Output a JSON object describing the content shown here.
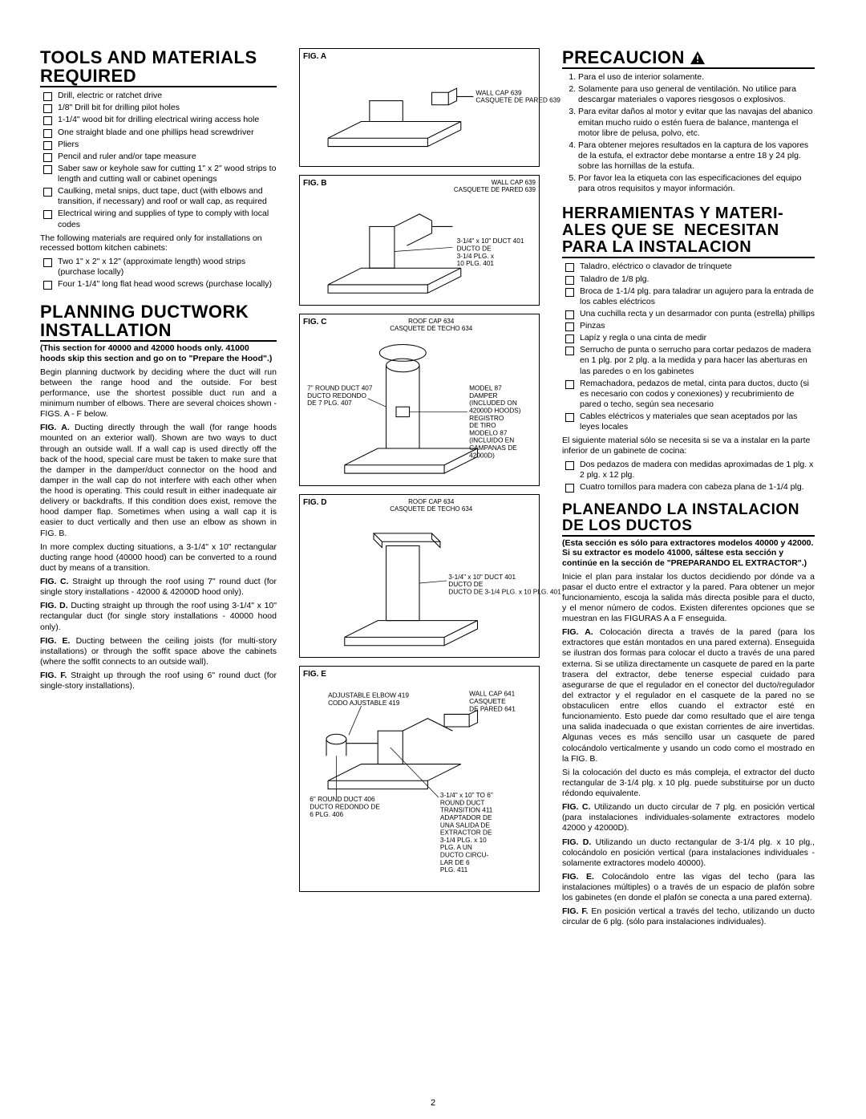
{
  "pageNumber": "2",
  "left": {
    "toolsTitle": "TOOLS AND MATERIALS REQUIRED",
    "toolsItems": [
      "Drill, electric or ratchet drive",
      "1/8\" Drill bit for drilling pilot holes",
      "1-1/4\" wood bit for drilling electrical wiring access hole",
      "One straight blade and one phillips head screwdriver",
      "Pliers",
      "Pencil and ruler and/or tape measure",
      "Saber saw or keyhole saw for cutting 1\" x 2\" wood strips to length and cutting wall or cabinet openings",
      "Caulking, metal snips, duct tape, duct (with elbows and transition, if necessary) and roof or wall cap, as required",
      "Electrical wiring and supplies of type to comply with local codes"
    ],
    "toolsNote": "The following materials are required only for installations on recessed bottom kitchen cabinets:",
    "toolsExtras": [
      "Two 1\" x 2\" x 12\" (approximate length) wood strips (purchase locally)",
      "Four 1-1/4\" long flat head wood screws (purchase locally)"
    ],
    "planTitle": "PLANNING DUCTWORK INSTALLATION",
    "planNote": "(This section for 40000 and 42000 hoods only. 41000 hoods skip this section and go on to \"Prepare the Hood\".)",
    "planParas": [
      "Begin planning ductwork by deciding where the duct will run between the range hood and the outside. For best performance, use the shortest possible duct run and a minimum number of elbows. There are several choices shown - FIGS. A - F below.",
      "FIG. A. Ducting directly through the wall (for range hoods mounted on an exterior wall). Shown are two ways to duct through an outside wall. If a wall cap is used directly off the back of the hood, special care must be taken to make sure that the damper in the damper/duct connector on the hood and damper in the wall cap do not interfere with each other when the hood is operating. This could result in either inadequate air delivery or backdrafts. If this condition does exist, remove the hood damper flap. Sometimes when using a wall cap it is easier to duct vertically and then use an elbow as shown in FIG. B.",
      "In more complex ducting situations, a 3-1/4\" x 10\" rectangular ducting range hood (40000 hood) can be converted to a round duct by means of a transition.",
      "FIG. C. Straight up through the roof using 7\" round duct (for single story installations - 42000 & 42000D hood only).",
      "FIG. D. Ducting straight up through the roof using 3-1/4\" x 10\" rectangular duct (for single story installations - 40000 hood only).",
      "FIG. E. Ducting between the ceiling joists (for multi-story installations) or through the soffit space above the cabinets (where the soffit connects to an outside wall).",
      "FIG. F. Straight up through the roof using 6\" round duct (for single-story installations)."
    ]
  },
  "mid": {
    "figA": {
      "label": "FIG. A",
      "cap1": "WALL CAP 639",
      "cap2": "CASQUETE DE PARED 639"
    },
    "figB": {
      "label": "FIG. B",
      "cap1": "WALL CAP 639",
      "cap2": "CASQUETE DE PARED 639",
      "duct1": "3-1/4\" x 10\" DUCT 401",
      "duct2": "DUCTO DE 3-1/4 PLG. x 10 PLG. 401"
    },
    "figC": {
      "label": "FIG. C",
      "cap1": "ROOF CAP 634",
      "cap2": "CASQUETE DE TECHO 634",
      "duct1": "7\" ROUND DUCT 407",
      "duct2": "DUCTO REDONDO DE 7 PLG. 407",
      "model1": "MODEL 87 DAMPER (INCLUDED ON 42000D HOODS)",
      "model2": "REGISTRO DE TIRO MODELO 87 (INCLUIDO EN CAMPANAS DE 42000D)"
    },
    "figD": {
      "label": "FIG. D",
      "cap1": "ROOF CAP 634",
      "cap2": "CASQUETE DE TECHO 634",
      "duct1": "3-1/4\" x 10\" DUCT 401",
      "duct2": "DUCTO DE 3-1/4 PLG. x 10 PLG. 401"
    },
    "figE": {
      "label": "FIG. E",
      "elbow1": "ADJUSTABLE ELBOW 419",
      "elbow2": "CODO AJUSTABLE 419",
      "wall1": "WALL CAP 641",
      "wall2": "CASQUETE DE PARED 641",
      "round1": "6\" ROUND DUCT 406",
      "round2": "DUCTO REDONDO DE 6 PLG. 406",
      "trans1": "3-1/4\" x 10\" TO 6\" ROUND DUCT TRANSITION 411",
      "trans2": "ADAPTADOR DE UNA SALIDA DE EXTRACTOR DE 3-1/4 PLG. x 10 PLG. A UN DUCTO CIRCULAR DE 6 PLG. 411"
    }
  },
  "right": {
    "precTitle": "PRECAUCION",
    "precItems": [
      "Para el uso de interior solamente.",
      "Solamente para uso general de ventilación. No utilice para descargar materiales o vapores riesgosos o explosivos.",
      "Para evitar daños al motor y evitar que las navajas del abanico emitan mucho ruido o estén fuera de balance, mantenga el motor libre de pelusa, polvo, etc.",
      "Para obtener mejores resultados en la captura de los vapores de la estufa, el extractor debe montarse a entre 18 y 24 plg. sobre las hornillas de la estufa.",
      "Por favor lea la etiqueta con las especificaciones del equipo para otros requisitos y mayor información."
    ],
    "herrTitle": "HERRAMIENTAS Y MATERI-ALES QUE SE NECESITAN PARA LA INSTALACION",
    "herrItems": [
      "Taladro, eléctrico o clavador de trínquete",
      "Taladro de 1/8 plg.",
      "Broca de 1-1/4 plg. para taladrar un agujero para la entrada de los cables eléctricos",
      "Una cuchilla recta y un desarmador con punta (estrella) phillips",
      "Pinzas",
      "Lapíz y regla o una cinta de medir",
      "Serrucho de punta o serrucho para cortar pedazos de madera en 1 plg. por 2 plg. a la medida y para hacer las aberturas en las paredes o en los gabinetes",
      "Remachadora, pedazos de metal, cinta para ductos, ducto (si es necesario con codos y conexiones) y recubrimiento de pared o techo, según sea necesario",
      "Cables eléctricos y materiales que sean aceptados por las leyes locales"
    ],
    "herrNote": "El siguiente material sólo se necesita si se va a instalar en la parte inferior de un gabinete de cocina:",
    "herrExtras": [
      "Dos pedazos de madera con medidas aproximadas de 1 plg. x 2 plg. x 12 plg.",
      "Cuatro tornillos para madera con cabeza plana de 1-1/4 plg."
    ],
    "planTitle": "PLANEANDO LA INSTALACION DE LOS DUCTOS",
    "planNote": "(Esta sección es sólo para extractores modelos 40000 y 42000. Si su extractor es modelo 41000, sáltese esta sección y continúe en la sección de \"PREPARANDO EL EXTRACTOR\".)",
    "planParas": [
      "Inicie el plan para instalar los ductos decidiendo por dónde va a pasar el ducto entre el extractor y la pared. Para obtener un mejor funcionamiento, escoja la salida más directa posible para el ducto, y el menor número de codos. Existen diferentes opciones que se muestran en las FIGURAS A a F enseguida.",
      "FIG. A. Colocación directa a través de la pared (para los extractores que están montados en una pared externa). Enseguida se ilustran dos formas para colocar el ducto a través de una pared externa. Si se utiliza directamente un casquete de pared en la parte trasera del extractor, debe tenerse especial cuidado para asegurarse de que el regulador en el conector del ducto/regulador del extractor y el regulador en el casquete de la pared no se obstaculicen entre ellos cuando el extractor esté en funcionamiento. Esto puede dar como resultado que el aire tenga una salida inadecuada o que existan corrientes de aire invertidas. Algunas veces es más sencillo usar un casquete de pared colocándolo verticalmente y usando un codo como el mostrado en la FIG. B.",
      "Si la colocación del ducto es más compleja, el extractor del ducto rectangular de 3-1/4 plg. x 10 plg. puede substituirse por un ducto rédondo equivalente.",
      "FIG. C. Utilizando un ducto circular de 7 plg. en posición vertical (para instalaciones individuales-solamente extractores modelo 42000 y 42000D).",
      "FIG. D. Utilizando un ducto rectangular de 3-1/4 plg. x 10 plg., colocándolo en posición vertical (para instalaciones individuales - solamente extractores modelo 40000).",
      "FIG. E. Colocándolo entre las vigas del techo (para las instalaciones múltiples) o a través de un espacio de plafón sobre los gabinetes (en donde el plafón se conecta a una pared externa).",
      "FIG. F. En posición vertical a través del techo, utilizando un ducto circular de 6 plg. (sólo para instalaciones individuales)."
    ]
  }
}
